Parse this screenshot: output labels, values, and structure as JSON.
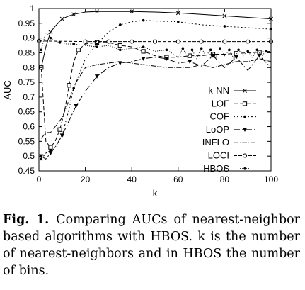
{
  "chart_data": {
    "type": "line",
    "title": "",
    "xlabel": "k",
    "ylabel": "AUC",
    "xlim": [
      0,
      100
    ],
    "ylim": [
      0.45,
      1.0
    ],
    "xticks": [
      "0",
      "20",
      "40",
      "60",
      "80",
      "100"
    ],
    "xtick_values": [
      0,
      20,
      40,
      60,
      80,
      100
    ],
    "yticks": [
      "0.45",
      "0.5",
      "0.55",
      "0.6",
      "0.65",
      "0.7",
      "0.75",
      "0.8",
      "0.85",
      "0.9",
      "0.95",
      "1"
    ],
    "ytick_values": [
      0.45,
      0.5,
      0.55,
      0.6,
      0.65,
      0.7,
      0.75,
      0.8,
      0.85,
      0.9,
      0.95,
      1.0
    ],
    "grid": false,
    "legend_position": "right",
    "series": [
      {
        "name": "k-NN",
        "color": "#000000",
        "dash": "",
        "marker": "x",
        "x": [
          1,
          3,
          5,
          7,
          10,
          13,
          15,
          20,
          25,
          30,
          40,
          50,
          60,
          70,
          80,
          90,
          100
        ],
        "y": [
          0.8,
          0.87,
          0.92,
          0.94,
          0.965,
          0.975,
          0.98,
          0.988,
          0.99,
          0.99,
          0.99,
          0.988,
          0.985,
          0.98,
          0.975,
          0.97,
          0.965
        ]
      },
      {
        "name": "LOF",
        "color": "#000000",
        "dash": "6,3",
        "marker": "square",
        "x": [
          1,
          3,
          5,
          7,
          9,
          11,
          13,
          15,
          17,
          20,
          25,
          30,
          35,
          40,
          45,
          50,
          55,
          60,
          65,
          70,
          75,
          80,
          85,
          90,
          95,
          100
        ],
        "y": [
          0.8,
          0.55,
          0.53,
          0.55,
          0.59,
          0.65,
          0.74,
          0.82,
          0.86,
          0.88,
          0.885,
          0.885,
          0.875,
          0.87,
          0.855,
          0.84,
          0.835,
          0.835,
          0.84,
          0.84,
          0.845,
          0.845,
          0.848,
          0.85,
          0.852,
          0.855
        ]
      },
      {
        "name": "COF",
        "color": "#000000",
        "dash": "2,3",
        "marker": "dot",
        "x": [
          1,
          3,
          5,
          7,
          10,
          13,
          15,
          20,
          25,
          30,
          35,
          40,
          45,
          50,
          60,
          70,
          80,
          90,
          100
        ],
        "y": [
          0.49,
          0.51,
          0.52,
          0.53,
          0.57,
          0.66,
          0.73,
          0.83,
          0.88,
          0.92,
          0.945,
          0.955,
          0.96,
          0.958,
          0.955,
          0.945,
          0.94,
          0.935,
          0.93
        ]
      },
      {
        "name": "LoOP",
        "color": "#000000",
        "dash": "9,3,2,3",
        "marker": "triangle-down",
        "x": [
          1,
          3,
          5,
          7,
          10,
          13,
          16,
          20,
          25,
          30,
          35,
          40,
          45,
          50,
          55,
          60,
          65,
          70,
          75,
          80,
          85,
          90,
          95,
          100
        ],
        "y": [
          0.5,
          0.49,
          0.51,
          0.53,
          0.57,
          0.62,
          0.67,
          0.72,
          0.77,
          0.8,
          0.815,
          0.82,
          0.83,
          0.835,
          0.83,
          0.815,
          0.82,
          0.805,
          0.84,
          0.8,
          0.835,
          0.79,
          0.84,
          0.8
        ]
      },
      {
        "name": "INFLO",
        "color": "#000000",
        "dash": "7,2,1,2",
        "marker": "",
        "x": [
          1,
          3,
          5,
          7,
          10,
          13,
          16,
          20,
          25,
          30,
          35,
          40,
          45,
          50,
          55,
          60,
          65,
          70,
          75,
          80,
          85,
          90,
          95,
          100
        ],
        "y": [
          0.56,
          0.58,
          0.58,
          0.6,
          0.63,
          0.69,
          0.75,
          0.8,
          0.81,
          0.815,
          0.82,
          0.815,
          0.81,
          0.805,
          0.8,
          0.8,
          0.8,
          0.81,
          0.8,
          0.81,
          0.82,
          0.82,
          0.83,
          0.82
        ]
      },
      {
        "name": "LOCI",
        "color": "#000000",
        "dash": "5,2",
        "marker": "circle",
        "x": [
          0,
          20,
          30,
          40,
          50,
          60,
          70,
          80,
          90,
          100
        ],
        "y": [
          0.89,
          0.888,
          0.888,
          0.888,
          0.888,
          0.888,
          0.888,
          0.888,
          0.888,
          0.888
        ]
      },
      {
        "name": "HBOS",
        "color": "#000000",
        "dash": "1,2",
        "marker": "dot",
        "x": [
          1,
          3,
          5,
          7,
          9,
          12,
          15,
          20,
          25,
          30,
          35,
          40,
          45,
          50,
          55,
          60,
          62,
          64,
          66,
          68,
          70,
          72,
          74,
          76,
          78,
          80,
          82,
          84,
          86,
          88,
          90,
          92,
          94,
          96,
          98,
          100
        ],
        "y": [
          0.86,
          0.92,
          0.9,
          0.89,
          0.885,
          0.88,
          0.88,
          0.875,
          0.87,
          0.875,
          0.86,
          0.865,
          0.87,
          0.855,
          0.86,
          0.835,
          0.865,
          0.835,
          0.86,
          0.83,
          0.865,
          0.84,
          0.86,
          0.83,
          0.865,
          0.84,
          0.86,
          0.83,
          0.86,
          0.84,
          0.855,
          0.835,
          0.86,
          0.84,
          0.855,
          0.85
        ]
      }
    ]
  },
  "caption": {
    "label": "Fig. 1.",
    "text": "Comparing AUCs of nearest-neighbor based algorithms with HBOS. k is the number of nearest-neighbors and in HBOS the number of bins."
  }
}
